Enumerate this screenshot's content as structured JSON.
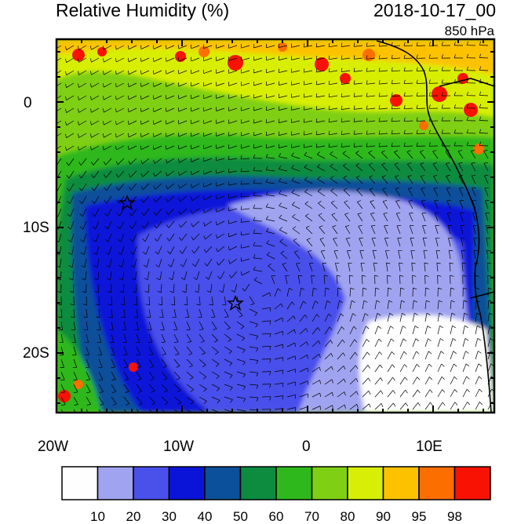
{
  "title": "Relative Humidity (%)",
  "datetime": "2018-10-17_00",
  "level": "850 hPa",
  "lat_labels": [
    "0",
    "10S",
    "20S"
  ],
  "lon_labels": [
    "20W",
    "10W",
    "0",
    "10E"
  ],
  "colorbar": {
    "colors": [
      "#fefefe",
      "#a0a4f0",
      "#4a50ea",
      "#0a14d8",
      "#0b509a",
      "#0d8c40",
      "#2eb81c",
      "#7fcf14",
      "#d8ee06",
      "#fcc200",
      "#fc6e00",
      "#f81204"
    ],
    "labels": [
      "10",
      "20",
      "30",
      "40",
      "50",
      "60",
      "70",
      "80",
      "90",
      "95",
      "98"
    ]
  },
  "map_colors": {
    "white": "#fefefe",
    "lightblue": "#a0a4f0",
    "blue30": "#4a50ea",
    "blue40": "#0a14d8",
    "blue50": "#0b509a",
    "green60": "#0d8c40",
    "green70": "#2eb81c",
    "green80": "#7fcf14",
    "yellow90": "#d8ee06",
    "orange95": "#fcc200",
    "orange98": "#fc6e00",
    "red": "#f81204"
  }
}
